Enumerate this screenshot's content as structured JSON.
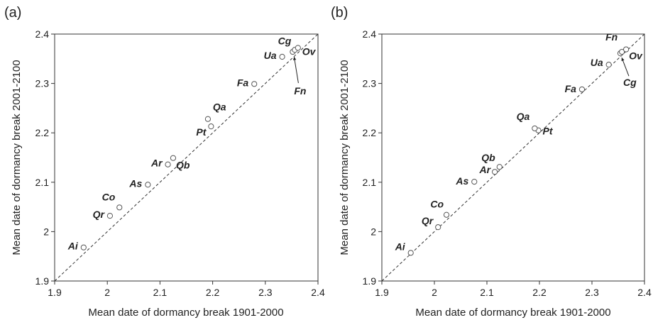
{
  "chart_data": [
    {
      "type": "scatter",
      "panel_label": "(a)",
      "xlabel": "Mean date of dormancy break 1901-2000",
      "ylabel": "Mean date of dormancy break 2001-2100",
      "xlim": [
        1.9,
        2.4
      ],
      "ylim": [
        1.9,
        2.4
      ],
      "x_ticks": [
        "1.9",
        "2",
        "2.1",
        "2.2",
        "2.3",
        "2.4"
      ],
      "y_ticks": [
        "1.9",
        "2",
        "2.1",
        "2.2",
        "2.3",
        "2.4"
      ],
      "reference_line": "1:1 dashed",
      "grid": false,
      "points": [
        {
          "label": "Ai",
          "x": 1.955,
          "y": 1.968
        },
        {
          "label": "Qr",
          "x": 2.005,
          "y": 2.032
        },
        {
          "label": "Co",
          "x": 2.023,
          "y": 2.049
        },
        {
          "label": "As",
          "x": 2.077,
          "y": 2.095
        },
        {
          "label": "Ar",
          "x": 2.115,
          "y": 2.136
        },
        {
          "label": "Qb",
          "x": 2.125,
          "y": 2.149
        },
        {
          "label": "Pt",
          "x": 2.197,
          "y": 2.213
        },
        {
          "label": "Qa",
          "x": 2.191,
          "y": 2.228
        },
        {
          "label": "Fa",
          "x": 2.279,
          "y": 2.299
        },
        {
          "label": "Ua",
          "x": 2.332,
          "y": 2.354
        },
        {
          "label": "Fn",
          "x": 2.352,
          "y": 2.364
        },
        {
          "label": "Cg",
          "x": 2.356,
          "y": 2.368
        },
        {
          "label": "Ov",
          "x": 2.362,
          "y": 2.372
        }
      ]
    },
    {
      "type": "scatter",
      "panel_label": "(b)",
      "xlabel": "Mean date of dormancy break 1901-2000",
      "ylabel": "Mean date of dormancy break 2001-2100",
      "xlim": [
        1.9,
        2.4
      ],
      "ylim": [
        1.9,
        2.4
      ],
      "x_ticks": [
        "1.9",
        "2",
        "2.1",
        "2.2",
        "2.3",
        "2.4"
      ],
      "y_ticks": [
        "1.9",
        "2",
        "2.1",
        "2.2",
        "2.3",
        "2.4"
      ],
      "reference_line": "1:1 dashed",
      "grid": false,
      "points": [
        {
          "label": "Ai",
          "x": 1.955,
          "y": 1.957
        },
        {
          "label": "Qr",
          "x": 2.007,
          "y": 2.009
        },
        {
          "label": "Co",
          "x": 2.023,
          "y": 2.034
        },
        {
          "label": "As",
          "x": 2.076,
          "y": 2.101
        },
        {
          "label": "Ar",
          "x": 2.115,
          "y": 2.121
        },
        {
          "label": "Qb",
          "x": 2.124,
          "y": 2.131
        },
        {
          "label": "Pt",
          "x": 2.198,
          "y": 2.205
        },
        {
          "label": "Qa",
          "x": 2.191,
          "y": 2.209
        },
        {
          "label": "Fa",
          "x": 2.281,
          "y": 2.288
        },
        {
          "label": "Ua",
          "x": 2.332,
          "y": 2.338
        },
        {
          "label": "Cg",
          "x": 2.354,
          "y": 2.361
        },
        {
          "label": "Fn",
          "x": 2.357,
          "y": 2.364
        },
        {
          "label": "Ov",
          "x": 2.365,
          "y": 2.369
        }
      ]
    }
  ]
}
